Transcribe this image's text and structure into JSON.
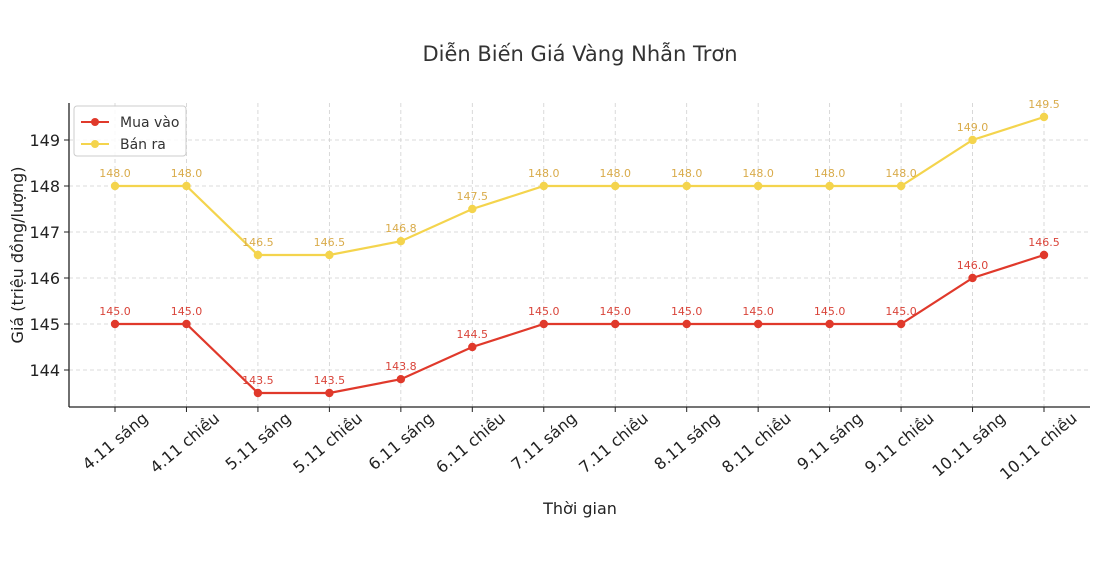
{
  "chart_data": {
    "type": "line",
    "title": "Diễn Biến Giá Vàng Nhẫn Trơn",
    "xlabel": "Thời gian",
    "ylabel": "Giá (triệu đồng/lượng)",
    "categories": [
      "4.11 sáng",
      "4.11 chiều",
      "5.11 sáng",
      "5.11 chiều",
      "6.11 sáng",
      "6.11 chiều",
      "7.11 sáng",
      "7.11 chiều",
      "8.11 sáng",
      "8.11 chiều",
      "9.11 sáng",
      "9.11 chiều",
      "10.11 sáng",
      "10.11 chiều"
    ],
    "series": [
      {
        "name": "Mua vào",
        "color": "#e0392b",
        "label_color": "#d9443a",
        "values": [
          145.0,
          145.0,
          143.5,
          143.5,
          143.8,
          144.5,
          145.0,
          145.0,
          145.0,
          145.0,
          145.0,
          145.0,
          146.0,
          146.5
        ]
      },
      {
        "name": "Bán ra",
        "color": "#f4d44d",
        "label_color": "#d9ab4a",
        "values": [
          148.0,
          148.0,
          146.5,
          146.5,
          146.8,
          147.5,
          148.0,
          148.0,
          148.0,
          148.0,
          148.0,
          148.0,
          149.0,
          149.5
        ]
      }
    ],
    "yticks": [
      144,
      145,
      146,
      147,
      148,
      149
    ],
    "ylim": [
      143.2,
      149.8
    ],
    "grid": true,
    "legend_position": "upper left"
  }
}
